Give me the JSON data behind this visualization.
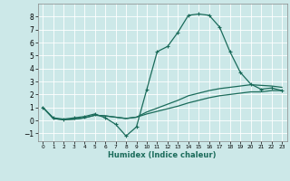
{
  "xlabel": "Humidex (Indice chaleur)",
  "bg_color": "#cce8e8",
  "grid_color": "#d0e8e8",
  "line_color": "#1a6b5a",
  "xlim": [
    -0.5,
    23.5
  ],
  "ylim": [
    -1.6,
    9.0
  ],
  "xticks": [
    0,
    1,
    2,
    3,
    4,
    5,
    6,
    7,
    8,
    9,
    10,
    11,
    12,
    13,
    14,
    15,
    16,
    17,
    18,
    19,
    20,
    21,
    22,
    23
  ],
  "yticks": [
    -1,
    0,
    1,
    2,
    3,
    4,
    5,
    6,
    7,
    8
  ],
  "series_main_x": [
    0,
    1,
    2,
    3,
    4,
    5,
    6,
    7,
    8,
    9,
    10,
    11,
    12,
    13,
    14,
    15,
    16,
    17,
    18,
    19,
    20,
    21,
    22,
    23
  ],
  "series_main_y": [
    1.0,
    0.2,
    0.1,
    0.2,
    0.3,
    0.5,
    0.2,
    -0.3,
    -1.2,
    -0.5,
    2.4,
    5.3,
    5.7,
    6.8,
    8.1,
    8.2,
    8.1,
    7.2,
    5.3,
    3.7,
    2.8,
    2.4,
    2.5,
    2.3
  ],
  "series_low_x": [
    0,
    1,
    2,
    3,
    4,
    5,
    6,
    7,
    8,
    9,
    10,
    11,
    12,
    13,
    14,
    15,
    16,
    17,
    18,
    19,
    20,
    21,
    22,
    23
  ],
  "series_low_y": [
    1.0,
    0.15,
    0.05,
    0.1,
    0.2,
    0.4,
    0.35,
    0.25,
    0.15,
    0.25,
    0.5,
    0.7,
    0.9,
    1.1,
    1.35,
    1.55,
    1.75,
    1.9,
    2.0,
    2.1,
    2.2,
    2.2,
    2.3,
    2.3
  ],
  "series_mid_x": [
    0,
    1,
    2,
    3,
    4,
    5,
    6,
    7,
    8,
    9,
    10,
    11,
    12,
    13,
    14,
    15,
    16,
    17,
    18,
    19,
    20,
    21,
    22,
    23
  ],
  "series_mid_y": [
    1.0,
    0.15,
    0.05,
    0.1,
    0.2,
    0.4,
    0.35,
    0.25,
    0.15,
    0.25,
    0.65,
    0.95,
    1.25,
    1.55,
    1.9,
    2.1,
    2.3,
    2.45,
    2.55,
    2.65,
    2.75,
    2.7,
    2.65,
    2.55
  ]
}
